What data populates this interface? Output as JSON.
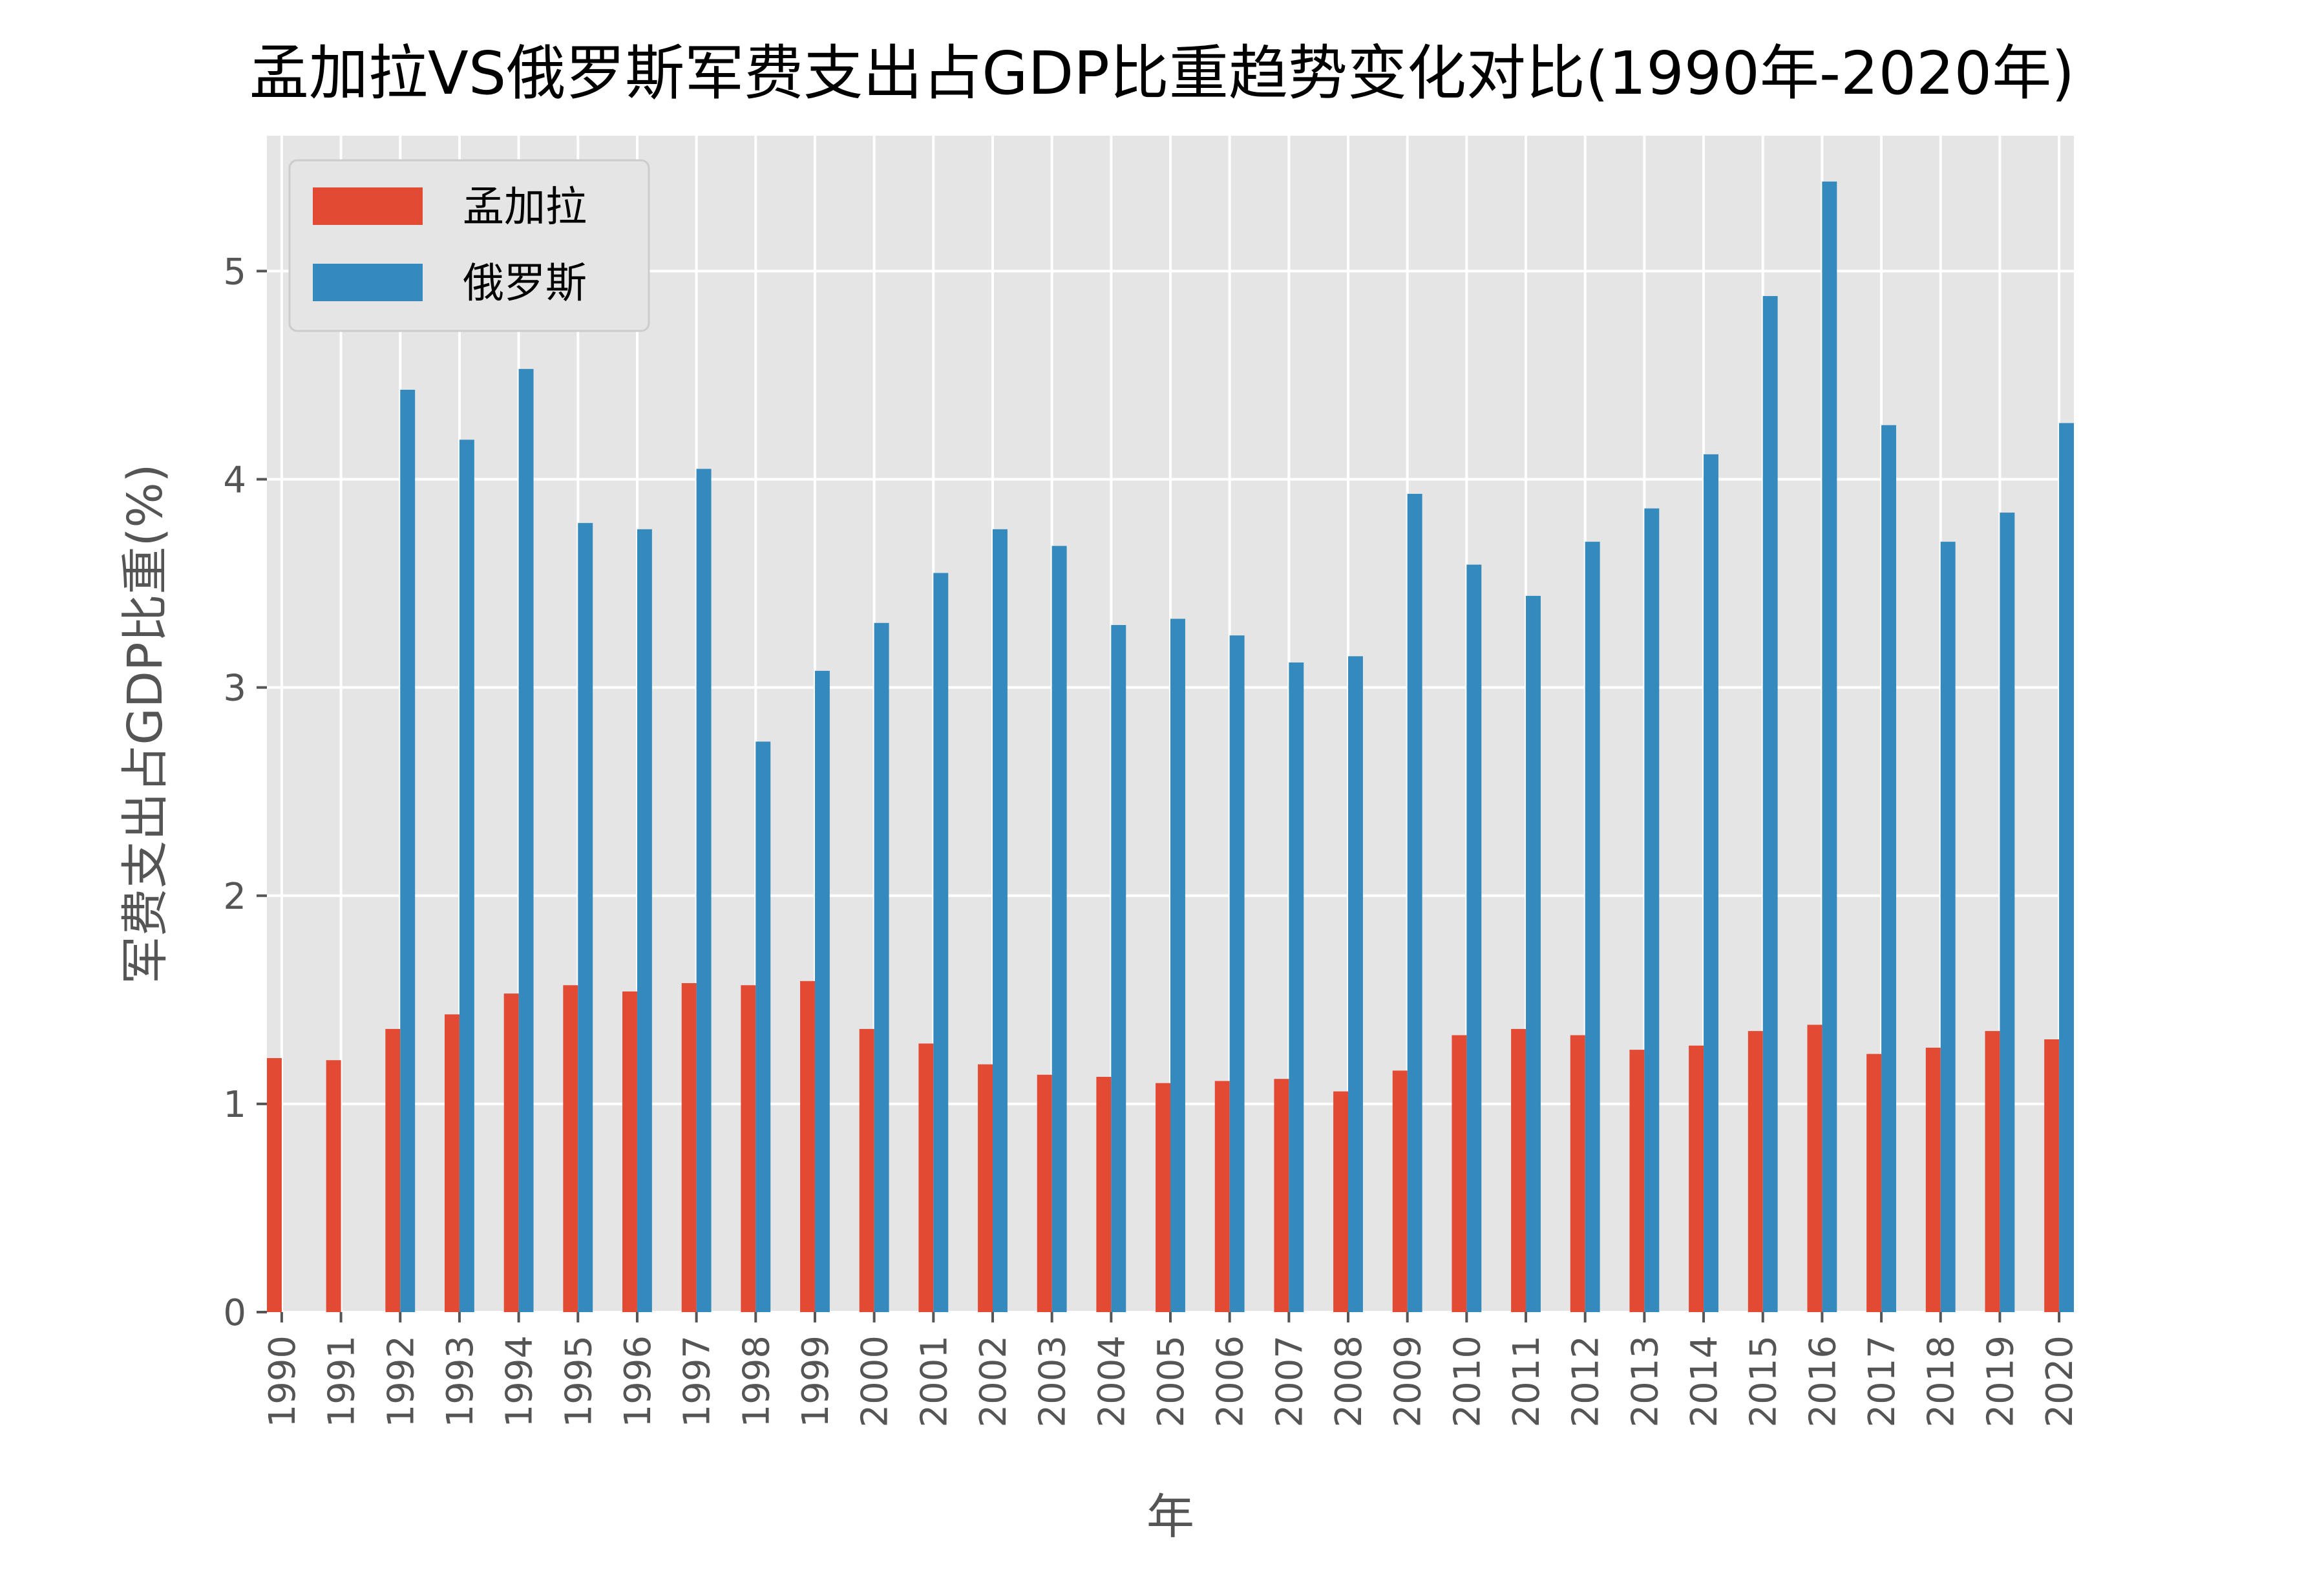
{
  "chart_data": {
    "type": "bar",
    "title": "孟加拉VS俄罗斯军费支出占GDP比重趋势变化对比(1990年-2020年)",
    "xlabel": "年",
    "ylabel": "军费支出占GDP比重(%)",
    "categories": [
      "1990",
      "1991",
      "1992",
      "1993",
      "1994",
      "1995",
      "1996",
      "1997",
      "1998",
      "1999",
      "2000",
      "2001",
      "2002",
      "2003",
      "2004",
      "2005",
      "2006",
      "2007",
      "2008",
      "2009",
      "2010",
      "2011",
      "2012",
      "2013",
      "2014",
      "2015",
      "2016",
      "2017",
      "2018",
      "2019",
      "2020"
    ],
    "series": [
      {
        "name": "孟加拉",
        "color": "#E24A33",
        "values": [
          1.22,
          1.21,
          1.36,
          1.43,
          1.53,
          1.57,
          1.54,
          1.58,
          1.57,
          1.59,
          1.36,
          1.29,
          1.19,
          1.14,
          1.13,
          1.1,
          1.11,
          1.12,
          1.06,
          1.16,
          1.33,
          1.36,
          1.33,
          1.26,
          1.28,
          1.35,
          1.38,
          1.24,
          1.27,
          1.35,
          1.31
        ]
      },
      {
        "name": "俄罗斯",
        "color": "#348ABD",
        "values": [
          null,
          null,
          4.43,
          4.19,
          4.53,
          3.79,
          3.76,
          4.05,
          2.74,
          3.08,
          3.31,
          3.55,
          3.76,
          3.68,
          3.3,
          3.33,
          3.25,
          3.12,
          3.15,
          3.93,
          3.59,
          3.44,
          3.7,
          3.86,
          4.12,
          4.88,
          5.43,
          4.26,
          3.7,
          3.84,
          4.27
        ]
      }
    ],
    "ylim": [
      0,
      5.65
    ],
    "yticks": [
      0,
      1,
      2,
      3,
      4,
      5
    ],
    "grid": true,
    "legend_position": "upper-left",
    "background_color": "#E5E5E5",
    "grid_color": "#FFFFFF"
  }
}
